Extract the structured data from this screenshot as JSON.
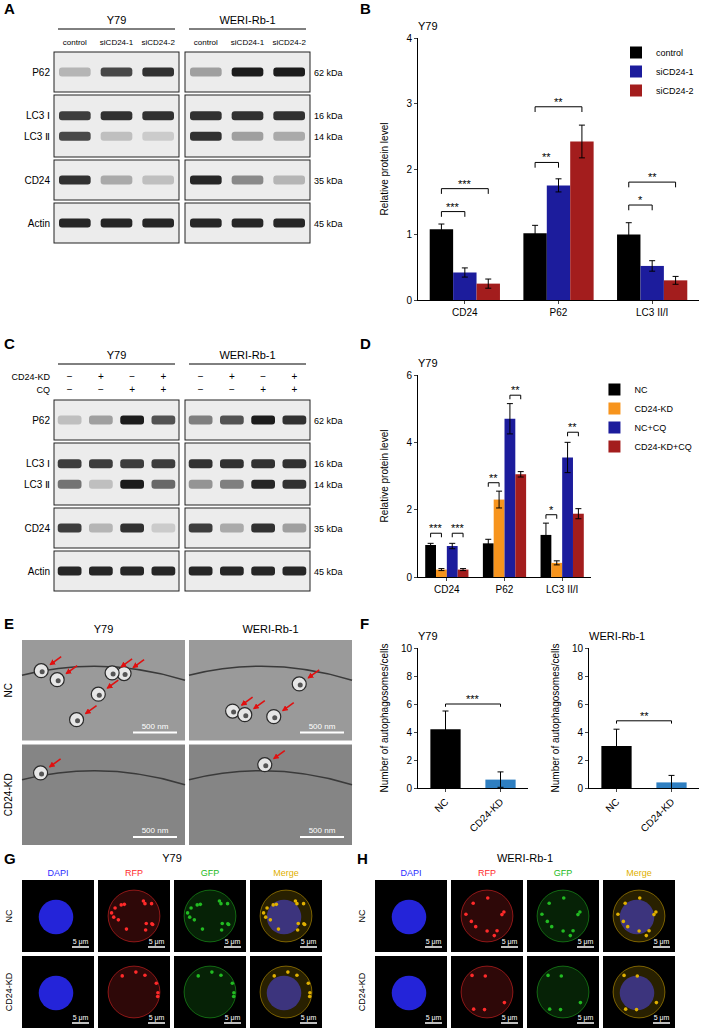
{
  "chart_data": [
    {
      "panel": "B",
      "type": "bar",
      "title": "Y79",
      "y_label": "Relative protein level",
      "categories": [
        "CD24",
        "P62",
        "LC3 II/I"
      ],
      "series": [
        {
          "name": "control",
          "color": "#000000",
          "values": [
            1.08,
            1.02,
            1.0
          ],
          "errors": [
            0.08,
            0.12,
            0.18
          ]
        },
        {
          "name": "siCD24-1",
          "color": "#1c1c9c",
          "values": [
            0.42,
            1.75,
            0.52
          ],
          "errors": [
            0.07,
            0.1,
            0.08
          ]
        },
        {
          "name": "siCD24-2",
          "color": "#a31d1d",
          "values": [
            0.25,
            2.42,
            0.3
          ],
          "errors": [
            0.07,
            0.25,
            0.06
          ]
        }
      ],
      "ylim": [
        0,
        4
      ],
      "yticks": [
        0,
        1,
        2,
        3,
        4
      ],
      "grid": false,
      "legend": "top right",
      "significance": [
        {
          "category": "CD24",
          "from": "control",
          "to": "siCD24-1",
          "label": "***",
          "y": 1.35
        },
        {
          "category": "CD24",
          "from": "control",
          "to": "siCD24-2",
          "label": "***",
          "y": 1.7
        },
        {
          "category": "P62",
          "from": "control",
          "to": "siCD24-1",
          "label": "**",
          "y": 2.1
        },
        {
          "category": "P62",
          "from": "control",
          "to": "siCD24-2",
          "label": "**",
          "y": 2.95
        },
        {
          "category": "LC3 II/I",
          "from": "control",
          "to": "siCD24-1",
          "label": "*",
          "y": 1.45
        },
        {
          "category": "LC3 II/I",
          "from": "control",
          "to": "siCD24-2",
          "label": "**",
          "y": 1.8
        }
      ]
    },
    {
      "panel": "D",
      "type": "bar",
      "title": "Y79",
      "y_label": "Relative protein level",
      "categories": [
        "CD24",
        "P62",
        "LC3 II/I"
      ],
      "series": [
        {
          "name": "NC",
          "color": "#000000",
          "values": [
            0.95,
            1.0,
            1.25
          ],
          "errors": [
            0.05,
            0.12,
            0.35
          ]
        },
        {
          "name": "CD24-KD",
          "color": "#f7941d",
          "values": [
            0.22,
            2.3,
            0.42
          ],
          "errors": [
            0.03,
            0.25,
            0.06
          ]
        },
        {
          "name": "NC+CQ",
          "color": "#1c1c9c",
          "values": [
            0.92,
            4.7,
            3.55
          ],
          "errors": [
            0.08,
            0.45,
            0.45
          ]
        },
        {
          "name": "CD24-KD+CQ",
          "color": "#a31d1d",
          "values": [
            0.22,
            3.05,
            1.88
          ],
          "errors": [
            0.03,
            0.08,
            0.15
          ]
        }
      ],
      "ylim": [
        0,
        6
      ],
      "yticks": [
        0,
        2,
        4,
        6
      ],
      "grid": false,
      "legend": "right",
      "significance": [
        {
          "category": "CD24",
          "from": "NC",
          "to": "CD24-KD",
          "label": "***",
          "y": 1.3
        },
        {
          "category": "CD24",
          "from": "NC+CQ",
          "to": "CD24-KD+CQ",
          "label": "***",
          "y": 1.3
        },
        {
          "category": "P62",
          "from": "NC",
          "to": "CD24-KD",
          "label": "**",
          "y": 2.8
        },
        {
          "category": "P62",
          "from": "NC+CQ",
          "to": "CD24-KD+CQ",
          "label": "**",
          "y": 5.4
        },
        {
          "category": "LC3 II/I",
          "from": "NC",
          "to": "CD24-KD",
          "label": "*",
          "y": 1.85
        },
        {
          "category": "LC3 II/I",
          "from": "NC+CQ",
          "to": "CD24-KD+CQ",
          "label": "**",
          "y": 4.3
        }
      ]
    },
    {
      "panel": "F",
      "type": "bar",
      "title": "Y79",
      "y_label": "Number of autophagosomes/cells",
      "categories": [
        "NC",
        "CD24-KD"
      ],
      "values": [
        4.2,
        0.6
      ],
      "errors": [
        1.3,
        0.55
      ],
      "colors": [
        "#000000",
        "#2f7fc1"
      ],
      "ylim": [
        0,
        10
      ],
      "yticks": [
        0,
        2,
        4,
        6,
        8,
        10
      ],
      "grid": false,
      "significance": [
        {
          "from": "NC",
          "to": "CD24-KD",
          "label": "***",
          "y": 6.0
        }
      ]
    },
    {
      "panel": "F",
      "type": "bar",
      "title": "WERI-Rb-1",
      "y_label": "Number of autophagosomes/cells",
      "categories": [
        "NC",
        "CD24-KD"
      ],
      "values": [
        3.0,
        0.4
      ],
      "errors": [
        1.2,
        0.5
      ],
      "colors": [
        "#000000",
        "#2f7fc1"
      ],
      "ylim": [
        0,
        10
      ],
      "yticks": [
        0,
        2,
        4,
        6,
        8,
        10
      ],
      "grid": false,
      "significance": [
        {
          "from": "NC",
          "to": "CD24-KD",
          "label": "**",
          "y": 4.8
        }
      ]
    }
  ],
  "blots": [
    {
      "panel": "A",
      "groups": [
        {
          "name": "Y79",
          "lanes": [
            "control",
            "siCD24-1",
            "siCD24-2"
          ]
        },
        {
          "name": "WERI-Rb-1",
          "lanes": [
            "control",
            "siCD24-1",
            "siCD24-2"
          ]
        }
      ],
      "rows": [
        [
          {
            "label": "P62",
            "mw": "62 kDa",
            "intensity": [
              [
                0.25,
                0.75,
                0.85
              ],
              [
                0.35,
                0.95,
                0.95
              ]
            ]
          }
        ],
        [
          {
            "label": "LC3 Ⅰ",
            "mw": "16 kDa",
            "intensity": [
              [
                0.8,
                0.85,
                0.85
              ],
              [
                0.85,
                0.85,
                0.85
              ]
            ]
          },
          {
            "label": "LC3 Ⅱ",
            "mw": "14 kDa",
            "intensity": [
              [
                0.75,
                0.2,
                0.15
              ],
              [
                0.85,
                0.35,
                0.3
              ]
            ]
          }
        ],
        [
          {
            "label": "CD24",
            "mw": "35 kDa",
            "intensity": [
              [
                0.85,
                0.3,
                0.2
              ],
              [
                0.9,
                0.45,
                0.25
              ]
            ]
          }
        ],
        [
          {
            "label": "Actin",
            "mw": "45 kDa",
            "intensity": [
              [
                0.9,
                0.9,
                0.9
              ],
              [
                0.9,
                0.9,
                0.9
              ]
            ]
          }
        ]
      ]
    },
    {
      "panel": "C",
      "groups": [
        {
          "name": "Y79"
        },
        {
          "name": "WERI-Rb-1"
        }
      ],
      "conditions": [
        {
          "label": "CD24-KD",
          "signs": [
            "−",
            "+",
            "−",
            "+"
          ]
        },
        {
          "label": "CQ",
          "signs": [
            "−",
            "−",
            "+",
            "+"
          ]
        }
      ],
      "rows": [
        [
          {
            "label": "P62",
            "mw": "62 kDa",
            "intensity": [
              [
                0.2,
                0.35,
                0.95,
                0.7
              ],
              [
                0.5,
                0.7,
                0.95,
                0.85
              ]
            ]
          }
        ],
        [
          {
            "label": "LC3 Ⅰ",
            "mw": "16 kDa",
            "intensity": [
              [
                0.8,
                0.8,
                0.8,
                0.8
              ],
              [
                0.85,
                0.85,
                0.85,
                0.85
              ]
            ]
          },
          {
            "label": "LC3 Ⅱ",
            "mw": "14 kDa",
            "intensity": [
              [
                0.55,
                0.2,
                0.95,
                0.6
              ],
              [
                0.4,
                0.5,
                0.9,
                0.85
              ]
            ]
          }
        ],
        [
          {
            "label": "CD24",
            "mw": "35 kDa",
            "intensity": [
              [
                0.8,
                0.25,
                0.85,
                0.15
              ],
              [
                0.8,
                0.3,
                0.85,
                0.35
              ]
            ]
          }
        ],
        [
          {
            "label": "Actin",
            "mw": "45 kDa",
            "intensity": [
              [
                0.9,
                0.9,
                0.9,
                0.9
              ],
              [
                0.9,
                0.9,
                0.9,
                0.9
              ]
            ]
          }
        ]
      ]
    }
  ],
  "micrograph": {
    "panel": "E",
    "columns": [
      "Y79",
      "WERI-Rb-1"
    ],
    "rows": [
      "NC",
      "CD24-KD"
    ],
    "scale_bar": "500 nm",
    "arrows": [
      [
        6,
        4
      ],
      [
        1,
        1
      ]
    ]
  },
  "fluorescence": [
    {
      "panel": "G",
      "title": "Y79",
      "rows": [
        "NC",
        "CD24-KD"
      ],
      "channels": [
        {
          "name": "DAPI",
          "color": "#2a2aff"
        },
        {
          "name": "RFP",
          "color": "#ff2a2a"
        },
        {
          "name": "GFP",
          "color": "#22bb22"
        },
        {
          "name": "Merge",
          "color": "#e0b000"
        }
      ],
      "scale_bar": "5 μm",
      "puncta": [
        14,
        6
      ]
    },
    {
      "panel": "H",
      "title": "WERI-Rb-1",
      "rows": [
        "NC",
        "CD24-KD"
      ],
      "channels": [
        {
          "name": "DAPI",
          "color": "#2a2aff"
        },
        {
          "name": "RFP",
          "color": "#ff2a2a"
        },
        {
          "name": "GFP",
          "color": "#22bb22"
        },
        {
          "name": "Merge",
          "color": "#e0b000"
        }
      ],
      "scale_bar": "5 μm",
      "puncta": [
        10,
        5
      ]
    }
  ]
}
